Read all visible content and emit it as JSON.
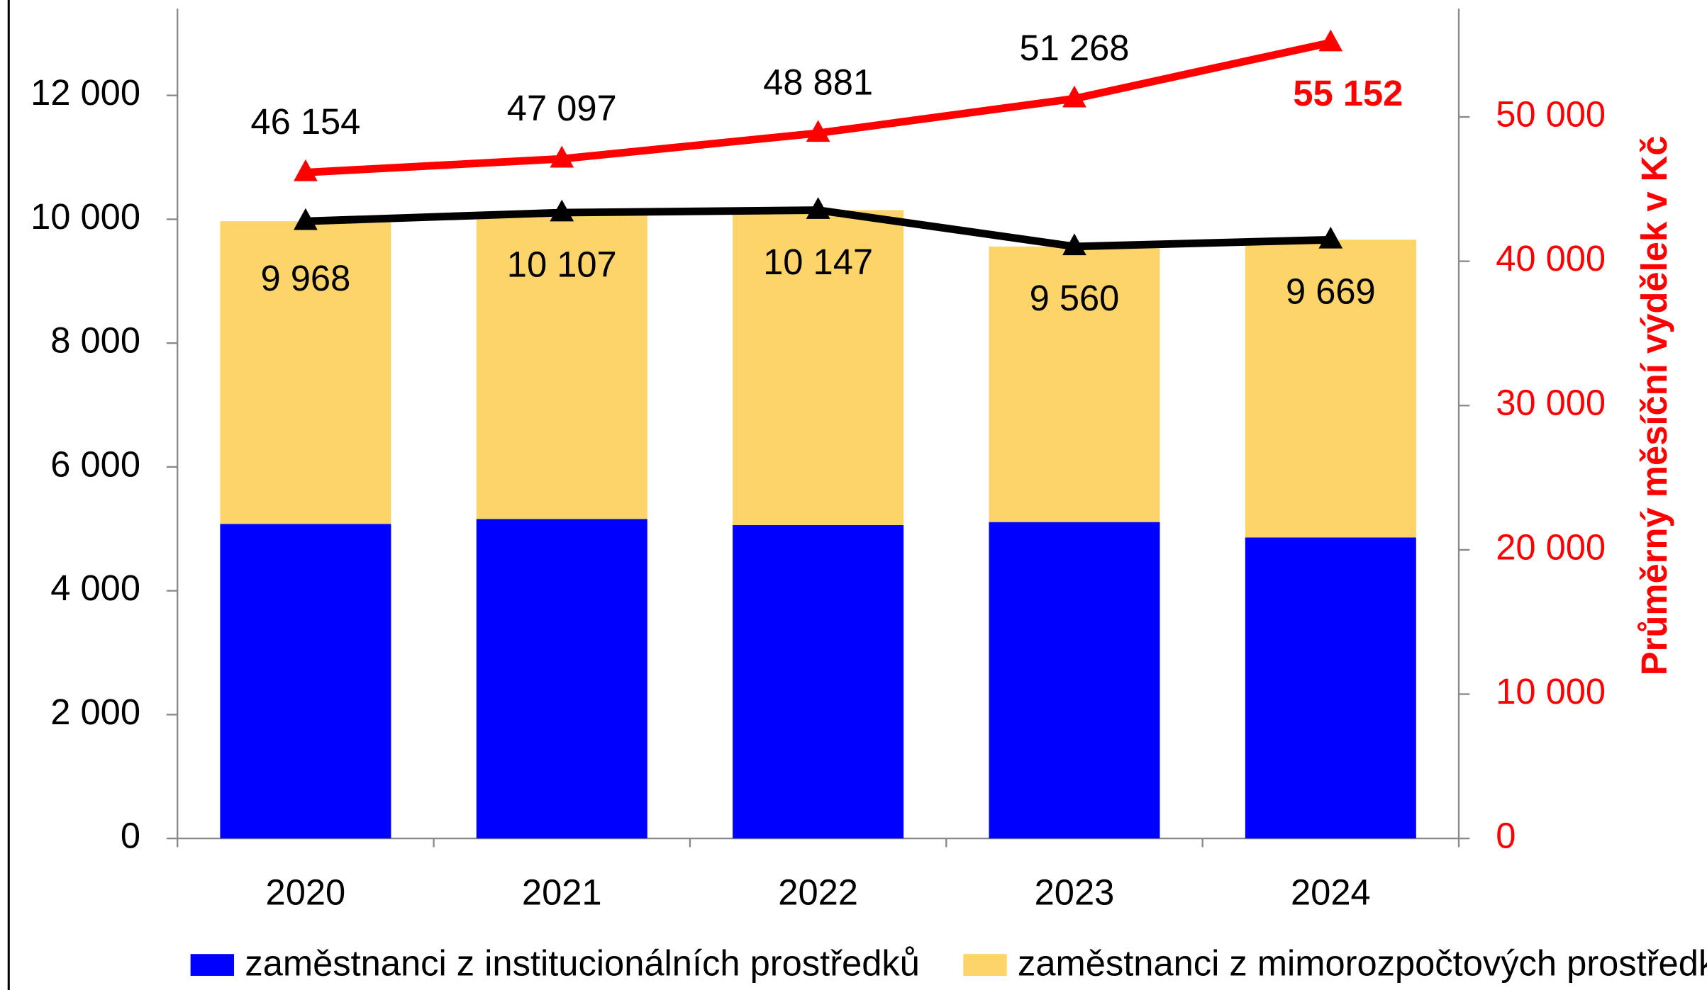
{
  "chart_data": {
    "type": "bar",
    "stacked": true,
    "categories": [
      "2020",
      "2021",
      "2022",
      "2023",
      "2024"
    ],
    "series": [
      {
        "name": "zaměstnanci z institucionálních prostředků",
        "color": "#0000ff",
        "type": "bar",
        "values": [
          5080,
          5160,
          5060,
          5110,
          4860
        ]
      },
      {
        "name": "zaměstnanci z mimorozpočtových prostředků",
        "color": "#fdd46a",
        "type": "bar",
        "values": [
          4888,
          4947,
          5087,
          4450,
          4809
        ]
      },
      {
        "color": "#000000",
        "type": "line",
        "values": [
          9968,
          10107,
          10147,
          9560,
          9669
        ],
        "value_labels": [
          "9 968",
          "10 107",
          "10 147",
          "9 560",
          "9 669"
        ]
      },
      {
        "color": "#ff0000",
        "type": "line",
        "axis": "y2",
        "values": [
          46154,
          47097,
          48881,
          51268,
          55152
        ],
        "value_labels": [
          "46 154",
          "47 097",
          "48 881",
          "51 268",
          "55 152"
        ]
      }
    ],
    "ylim": [
      0,
      13400
    ],
    "yticks": [
      0,
      {
        "value": 2000,
        "label": "2 000"
      },
      {
        "value": 4000,
        "label": "4 000"
      },
      {
        "value": 6000,
        "label": "6 000"
      },
      {
        "value": 8000,
        "label": "8 000"
      },
      {
        "value": 10000,
        "label": "10 000"
      },
      {
        "value": 12000,
        "label": "12 000"
      }
    ],
    "y2lim": [
      0,
      57500
    ],
    "y2ticks": [
      0,
      {
        "value": 10000,
        "label": "10 000"
      },
      {
        "value": 20000,
        "label": "20 000"
      },
      {
        "value": 30000,
        "label": "30 000"
      },
      {
        "value": 40000,
        "label": "40 000"
      },
      {
        "value": 50000,
        "label": "50 000"
      }
    ],
    "y2label": "Průměrný měsíční výdělek v Kč",
    "y2color": "#ff0000"
  }
}
